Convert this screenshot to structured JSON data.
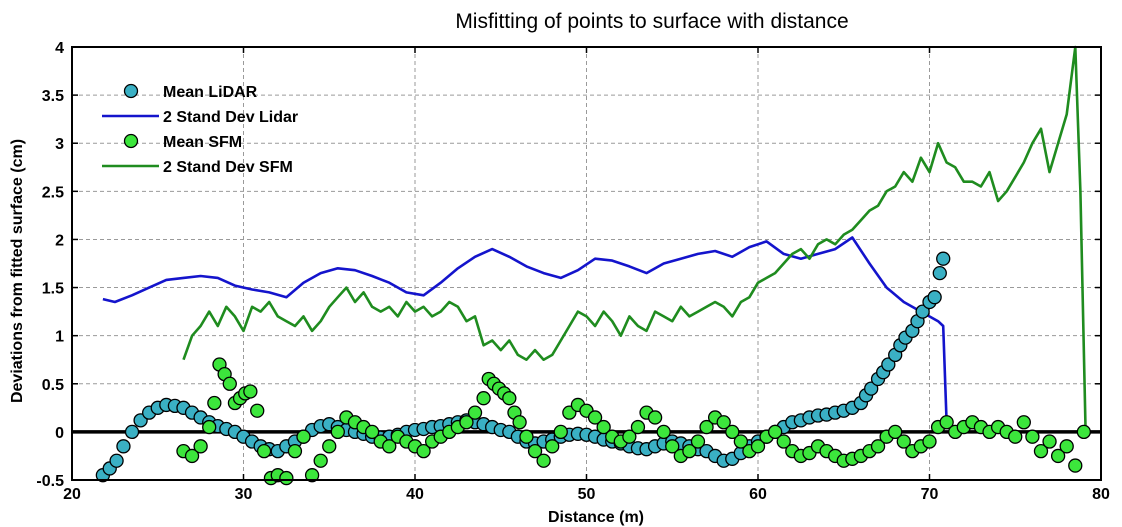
{
  "chart_data": {
    "type": "scatter",
    "title": "Misfitting of points to surface with distance",
    "xlabel": "Distance (m)",
    "ylabel": "Deviations from fitted surface (cm)",
    "xlim": [
      20,
      80
    ],
    "ylim": [
      -0.5,
      4
    ],
    "x_ticks": [
      20,
      30,
      40,
      50,
      60,
      70,
      80
    ],
    "y_ticks": [
      -0.5,
      0,
      0.5,
      1,
      1.5,
      2,
      2.5,
      3,
      3.5,
      4
    ],
    "x_tick_labels": [
      "20",
      "30",
      "40",
      "50",
      "60",
      "70",
      "80"
    ],
    "y_tick_labels": [
      "-0.5",
      "0",
      "0.5",
      "1",
      "1.5",
      "2",
      "2.5",
      "3",
      "3.5",
      "4"
    ],
    "grid": true,
    "legend_position": "top-left",
    "zero_line": 0,
    "series": [
      {
        "name": "Mean LiDAR",
        "kind": "markers",
        "color": "#3ab0c4",
        "x": [
          21.8,
          22.2,
          22.6,
          23.0,
          23.5,
          24.0,
          24.5,
          25.0,
          25.5,
          26.0,
          26.5,
          27.0,
          27.5,
          28.0,
          28.5,
          29.0,
          29.5,
          30.0,
          30.5,
          31.0,
          31.5,
          32.0,
          32.5,
          33.0,
          33.5,
          34.0,
          34.5,
          35.0,
          35.5,
          36.0,
          36.5,
          37.0,
          37.5,
          38.0,
          38.5,
          39.0,
          39.5,
          40.0,
          40.5,
          41.0,
          41.5,
          42.0,
          42.5,
          43.0,
          43.5,
          44.0,
          44.5,
          45.0,
          45.5,
          46.0,
          46.5,
          47.0,
          47.5,
          48.0,
          48.5,
          49.0,
          49.5,
          50.0,
          50.5,
          51.0,
          51.5,
          52.0,
          52.5,
          53.0,
          53.5,
          54.0,
          54.5,
          55.0,
          55.5,
          56.0,
          56.5,
          57.0,
          57.5,
          58.0,
          58.5,
          59.0,
          59.5,
          60.0,
          60.5,
          61.0,
          61.5,
          62.0,
          62.5,
          63.0,
          63.5,
          64.0,
          64.5,
          65.0,
          65.5,
          66.0,
          66.3,
          66.6,
          67.0,
          67.3,
          67.6,
          68.0,
          68.3,
          68.6,
          69.0,
          69.3,
          69.6,
          70.0,
          70.3,
          70.6,
          70.8
        ],
        "y": [
          -0.45,
          -0.38,
          -0.3,
          -0.15,
          0.0,
          0.12,
          0.2,
          0.25,
          0.28,
          0.27,
          0.25,
          0.2,
          0.15,
          0.1,
          0.06,
          0.03,
          0.0,
          -0.05,
          -0.1,
          -0.15,
          -0.18,
          -0.2,
          -0.15,
          -0.1,
          -0.05,
          0.02,
          0.06,
          0.08,
          0.05,
          0.02,
          0.0,
          -0.02,
          -0.05,
          -0.06,
          -0.05,
          -0.03,
          0.0,
          0.02,
          0.03,
          0.05,
          0.06,
          0.08,
          0.1,
          0.12,
          0.1,
          0.08,
          0.05,
          0.02,
          0.0,
          -0.05,
          -0.1,
          -0.12,
          -0.1,
          -0.08,
          -0.05,
          -0.03,
          -0.02,
          -0.03,
          -0.05,
          -0.08,
          -0.1,
          -0.12,
          -0.15,
          -0.17,
          -0.18,
          -0.15,
          -0.12,
          -0.1,
          -0.12,
          -0.15,
          -0.18,
          -0.2,
          -0.25,
          -0.3,
          -0.28,
          -0.22,
          -0.15,
          -0.1,
          -0.05,
          0.0,
          0.05,
          0.1,
          0.12,
          0.15,
          0.17,
          0.18,
          0.2,
          0.22,
          0.25,
          0.3,
          0.38,
          0.45,
          0.55,
          0.62,
          0.7,
          0.8,
          0.9,
          0.98,
          1.05,
          1.15,
          1.25,
          1.35,
          1.4,
          1.65,
          1.8
        ]
      },
      {
        "name": "2 Stand Dev Lidar",
        "kind": "line",
        "color": "#1414cc",
        "x": [
          21.8,
          22.5,
          23.5,
          24.5,
          25.5,
          26.5,
          27.5,
          28.5,
          29.5,
          30.5,
          31.5,
          32.5,
          33.5,
          34.5,
          35.5,
          36.5,
          37.5,
          38.5,
          39.5,
          40.5,
          41.5,
          42.5,
          43.5,
          44.5,
          45.5,
          46.5,
          47.5,
          48.5,
          49.5,
          50.5,
          51.5,
          52.5,
          53.5,
          54.5,
          55.5,
          56.5,
          57.5,
          58.5,
          59.5,
          60.5,
          61.5,
          62.5,
          63.5,
          64.5,
          65.5,
          66.5,
          67.5,
          68.5,
          69.5,
          70.5,
          70.8,
          71.0
        ],
        "y": [
          1.38,
          1.35,
          1.42,
          1.5,
          1.58,
          1.6,
          1.62,
          1.6,
          1.52,
          1.48,
          1.45,
          1.4,
          1.55,
          1.65,
          1.7,
          1.68,
          1.62,
          1.55,
          1.45,
          1.42,
          1.55,
          1.7,
          1.82,
          1.9,
          1.82,
          1.72,
          1.65,
          1.6,
          1.68,
          1.8,
          1.78,
          1.72,
          1.65,
          1.75,
          1.8,
          1.85,
          1.88,
          1.82,
          1.92,
          1.98,
          1.85,
          1.8,
          1.85,
          1.9,
          2.02,
          1.75,
          1.5,
          1.35,
          1.25,
          1.15,
          1.1,
          0.1
        ]
      },
      {
        "name": "Mean SFM",
        "kind": "markers",
        "color": "#3ce63c",
        "x": [
          26.5,
          27.0,
          27.5,
          28.0,
          28.3,
          28.6,
          28.9,
          29.2,
          29.5,
          29.8,
          30.1,
          30.4,
          30.8,
          31.2,
          31.6,
          32.0,
          32.5,
          33.0,
          33.5,
          34.0,
          34.5,
          35.0,
          35.5,
          36.0,
          36.5,
          37.0,
          37.5,
          38.0,
          38.5,
          39.0,
          39.5,
          40.0,
          40.5,
          41.0,
          41.5,
          42.0,
          42.5,
          43.0,
          43.5,
          44.0,
          44.3,
          44.6,
          44.9,
          45.2,
          45.5,
          45.8,
          46.1,
          46.5,
          47.0,
          47.5,
          48.0,
          48.5,
          49.0,
          49.5,
          50.0,
          50.5,
          51.0,
          51.5,
          52.0,
          52.5,
          53.0,
          53.5,
          54.0,
          54.5,
          55.0,
          55.5,
          56.0,
          56.5,
          57.0,
          57.5,
          58.0,
          58.5,
          59.0,
          59.5,
          60.0,
          60.5,
          61.0,
          61.5,
          62.0,
          62.5,
          63.0,
          63.5,
          64.0,
          64.5,
          65.0,
          65.5,
          66.0,
          66.5,
          67.0,
          67.5,
          68.0,
          68.5,
          69.0,
          69.5,
          70.0,
          70.5,
          71.0,
          71.5,
          72.0,
          72.5,
          73.0,
          73.5,
          74.0,
          74.5,
          75.0,
          75.5,
          76.0,
          76.5,
          77.0,
          77.5,
          78.0,
          78.5,
          79.0
        ],
        "y": [
          -0.2,
          -0.25,
          -0.15,
          0.05,
          0.3,
          0.7,
          0.6,
          0.5,
          0.3,
          0.35,
          0.4,
          0.42,
          0.22,
          -0.2,
          -0.48,
          -0.45,
          -0.48,
          -0.2,
          -0.05,
          -0.45,
          -0.3,
          -0.15,
          0.0,
          0.15,
          0.1,
          0.05,
          0.0,
          -0.1,
          -0.15,
          -0.05,
          -0.1,
          -0.15,
          -0.2,
          -0.1,
          -0.05,
          0.0,
          0.05,
          0.1,
          0.2,
          0.35,
          0.55,
          0.5,
          0.45,
          0.4,
          0.35,
          0.2,
          0.1,
          -0.05,
          -0.2,
          -0.3,
          -0.15,
          0.0,
          0.2,
          0.28,
          0.22,
          0.15,
          0.05,
          -0.05,
          -0.1,
          -0.05,
          0.05,
          0.2,
          0.15,
          0.0,
          -0.15,
          -0.25,
          -0.2,
          -0.1,
          0.05,
          0.15,
          0.1,
          0.0,
          -0.1,
          -0.2,
          -0.15,
          -0.05,
          0.0,
          -0.1,
          -0.2,
          -0.25,
          -0.22,
          -0.15,
          -0.2,
          -0.25,
          -0.3,
          -0.28,
          -0.25,
          -0.2,
          -0.15,
          -0.05,
          0.0,
          -0.1,
          -0.2,
          -0.15,
          -0.1,
          0.05,
          0.1,
          0.0,
          0.05,
          0.1,
          0.05,
          0.0,
          0.05,
          0.0,
          -0.05,
          0.1,
          -0.05,
          -0.2,
          -0.1,
          -0.25,
          -0.15,
          -0.35,
          0.0
        ]
      },
      {
        "name": "2 Stand Dev SFM",
        "kind": "line",
        "color": "#1f8c1f",
        "x": [
          26.5,
          27.0,
          27.5,
          28.0,
          28.5,
          29.0,
          29.5,
          30.0,
          30.5,
          31.0,
          31.5,
          32.0,
          32.5,
          33.0,
          33.5,
          34.0,
          34.5,
          35.0,
          35.5,
          36.0,
          36.5,
          37.0,
          37.5,
          38.0,
          38.5,
          39.0,
          39.5,
          40.0,
          40.5,
          41.0,
          41.5,
          42.0,
          42.5,
          43.0,
          43.5,
          44.0,
          44.5,
          45.0,
          45.5,
          46.0,
          46.5,
          47.0,
          47.5,
          48.0,
          48.5,
          49.0,
          49.5,
          50.0,
          50.5,
          51.0,
          51.5,
          52.0,
          52.5,
          53.0,
          53.5,
          54.0,
          54.5,
          55.0,
          55.5,
          56.0,
          56.5,
          57.0,
          57.5,
          58.0,
          58.5,
          59.0,
          59.5,
          60.0,
          60.5,
          61.0,
          61.5,
          62.0,
          62.5,
          63.0,
          63.5,
          64.0,
          64.5,
          65.0,
          65.5,
          66.0,
          66.5,
          67.0,
          67.5,
          68.0,
          68.5,
          69.0,
          69.5,
          70.0,
          70.5,
          71.0,
          71.5,
          72.0,
          72.5,
          73.0,
          73.5,
          74.0,
          74.5,
          75.0,
          75.5,
          76.0,
          76.5,
          77.0,
          77.5,
          78.0,
          78.5,
          78.8,
          79.1
        ],
        "y": [
          0.75,
          1.0,
          1.1,
          1.25,
          1.1,
          1.3,
          1.2,
          1.05,
          1.3,
          1.25,
          1.35,
          1.2,
          1.15,
          1.1,
          1.2,
          1.05,
          1.15,
          1.3,
          1.4,
          1.5,
          1.35,
          1.45,
          1.3,
          1.25,
          1.3,
          1.2,
          1.35,
          1.25,
          1.3,
          1.2,
          1.25,
          1.35,
          1.3,
          1.15,
          1.2,
          0.9,
          0.95,
          0.85,
          0.95,
          0.8,
          0.75,
          0.85,
          0.75,
          0.8,
          0.95,
          1.1,
          1.25,
          1.2,
          1.1,
          1.25,
          1.15,
          1.0,
          1.2,
          1.1,
          1.05,
          1.25,
          1.2,
          1.15,
          1.3,
          1.2,
          1.25,
          1.3,
          1.35,
          1.3,
          1.2,
          1.35,
          1.4,
          1.55,
          1.6,
          1.65,
          1.75,
          1.85,
          1.9,
          1.8,
          1.95,
          2.0,
          1.95,
          2.05,
          2.1,
          2.2,
          2.3,
          2.35,
          2.5,
          2.55,
          2.7,
          2.6,
          2.85,
          2.7,
          3.0,
          2.8,
          2.75,
          2.6,
          2.6,
          2.55,
          2.7,
          2.4,
          2.5,
          2.65,
          2.8,
          3.0,
          3.15,
          2.7,
          3.0,
          3.3,
          4.0,
          2.5,
          0.0
        ]
      }
    ]
  }
}
